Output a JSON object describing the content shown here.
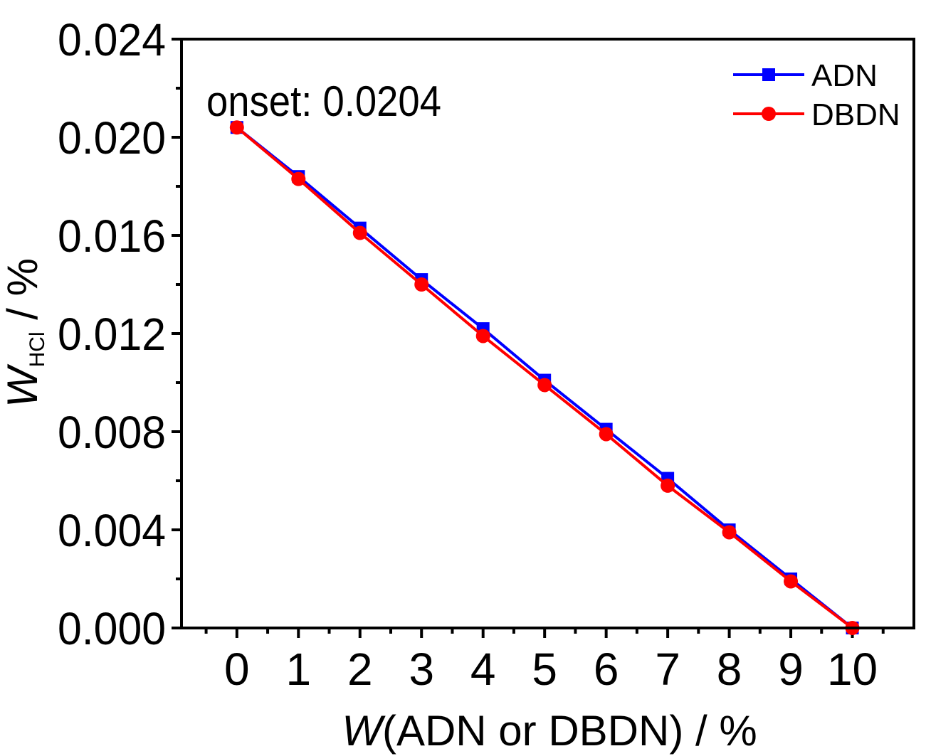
{
  "chart_data": {
    "type": "line",
    "x": [
      0,
      1,
      2,
      3,
      4,
      5,
      6,
      7,
      8,
      9,
      10
    ],
    "series": [
      {
        "name": "ADN",
        "color": "#0000ff",
        "marker": "square",
        "values": [
          0.0204,
          0.0184,
          0.0163,
          0.0142,
          0.0122,
          0.0101,
          0.0081,
          0.0061,
          0.004,
          0.002,
          0.0
        ]
      },
      {
        "name": "DBDN",
        "color": "#ff0000",
        "marker": "circle",
        "values": [
          0.0204,
          0.0183,
          0.0161,
          0.014,
          0.0119,
          0.0099,
          0.0079,
          0.0058,
          0.0039,
          0.0019,
          0.0
        ]
      }
    ],
    "xlim": [
      -0.9,
      11
    ],
    "ylim": [
      0,
      0.024
    ],
    "xticks": [
      "0",
      "1",
      "2",
      "3",
      "4",
      "5",
      "6",
      "7",
      "8",
      "9",
      "10"
    ],
    "yticks": [
      "0.000",
      "0.004",
      "0.008",
      "0.012",
      "0.016",
      "0.020",
      "0.024"
    ],
    "xlabel": {
      "italic": "W",
      "rest": "(ADN or DBDN) / %"
    },
    "ylabel": {
      "italic": "W",
      "sub": "HCl",
      "rest": " / %"
    },
    "annotation": "onset: 0.0204",
    "legend_position": "top-right",
    "grid": false
  }
}
